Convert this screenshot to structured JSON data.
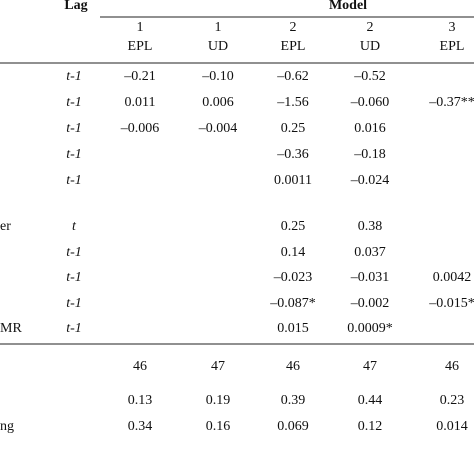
{
  "header": {
    "lag": "Lag",
    "model": "Model",
    "columns": [
      {
        "number": "1",
        "label": "EPL"
      },
      {
        "number": "1",
        "label": "UD"
      },
      {
        "number": "2",
        "label": "EPL"
      },
      {
        "number": "2",
        "label": "UD"
      },
      {
        "number": "3",
        "label": "EPL"
      }
    ]
  },
  "rows": [
    {
      "label": null,
      "lag": "t-1",
      "cells": [
        "–0.21",
        "–0.10",
        "–0.62",
        "–0.52",
        null
      ]
    },
    {
      "label": null,
      "lag": "t-1",
      "cells": [
        "0.011",
        "0.006",
        "–1.56",
        "–0.060",
        "–0.37**"
      ]
    },
    {
      "label": null,
      "lag": "t-1",
      "cells": [
        "–0.006",
        "–0.004",
        "0.25",
        "0.016",
        null
      ]
    },
    {
      "label": null,
      "lag": "t-1",
      "cells": [
        null,
        null,
        "–0.36",
        "–0.18",
        null
      ]
    },
    {
      "label": null,
      "lag": "t-1",
      "cells": [
        null,
        null,
        "0.0011",
        "–0.024",
        null
      ]
    },
    {
      "label": "er",
      "lag": "t",
      "cells": [
        null,
        null,
        "0.25",
        "0.38",
        null
      ]
    },
    {
      "label": null,
      "lag": "t-1",
      "cells": [
        null,
        null,
        "0.14",
        "0.037",
        null
      ]
    },
    {
      "label": null,
      "lag": "t-1",
      "cells": [
        null,
        null,
        "–0.023",
        "–0.031",
        "0.0042"
      ]
    },
    {
      "label": null,
      "lag": "t-1",
      "cells": [
        null,
        null,
        "–0.087*",
        "–0.002",
        "–0.015*"
      ]
    },
    {
      "label": "MR",
      "lag": "t-1",
      "cells": [
        null,
        null,
        "0.015",
        "0.0009*",
        null
      ]
    },
    {
      "label": null,
      "lag": null,
      "cells": [
        "46",
        "47",
        "46",
        "47",
        "46"
      ]
    },
    {
      "label": null,
      "lag": null,
      "cells": [
        "0.13",
        "0.19",
        "0.39",
        "0.44",
        "0.23"
      ]
    },
    {
      "label": "ng",
      "lag": null,
      "cells": [
        "0.34",
        "0.16",
        "0.069",
        "0.12",
        "0.014"
      ]
    }
  ]
}
